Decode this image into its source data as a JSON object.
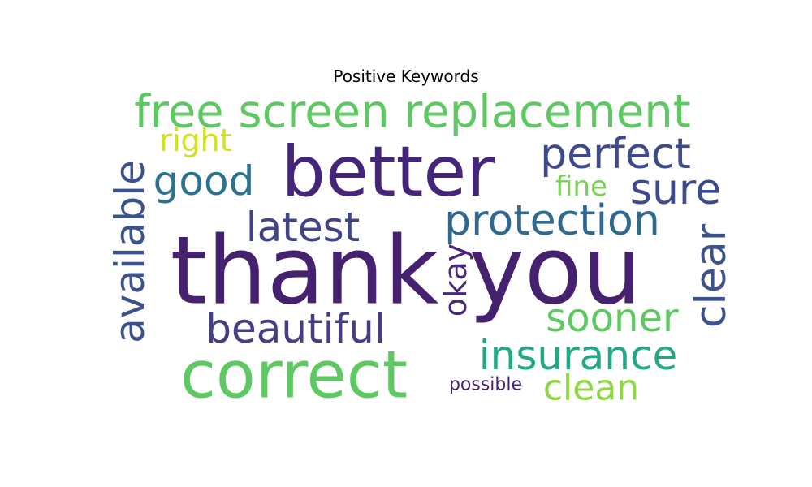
{
  "chart_data": {
    "type": "wordcloud",
    "title": "Positive Keywords",
    "words": [
      {
        "text": "thank you",
        "color": "#46216f"
      },
      {
        "text": "better",
        "color": "#45257a"
      },
      {
        "text": "correct",
        "color": "#5ec962"
      },
      {
        "text": "free screen replacement",
        "color": "#5ec962"
      },
      {
        "text": "protection",
        "color": "#31688e"
      },
      {
        "text": "available",
        "color": "#3b528b"
      },
      {
        "text": "perfect",
        "color": "#3e4a89"
      },
      {
        "text": "beautiful",
        "color": "#433e85"
      },
      {
        "text": "latest",
        "color": "#414487"
      },
      {
        "text": "insurance",
        "color": "#22a884"
      },
      {
        "text": "clear",
        "color": "#3b528b"
      },
      {
        "text": "good",
        "color": "#2c728e"
      },
      {
        "text": "sure",
        "color": "#3e4a89"
      },
      {
        "text": "sooner",
        "color": "#5ec962"
      },
      {
        "text": "clean",
        "color": "#8fd744"
      },
      {
        "text": "okay",
        "color": "#482878"
      },
      {
        "text": "right",
        "color": "#d2e21b"
      },
      {
        "text": "fine",
        "color": "#7ad151"
      },
      {
        "text": "possible",
        "color": "#481f70"
      }
    ]
  }
}
